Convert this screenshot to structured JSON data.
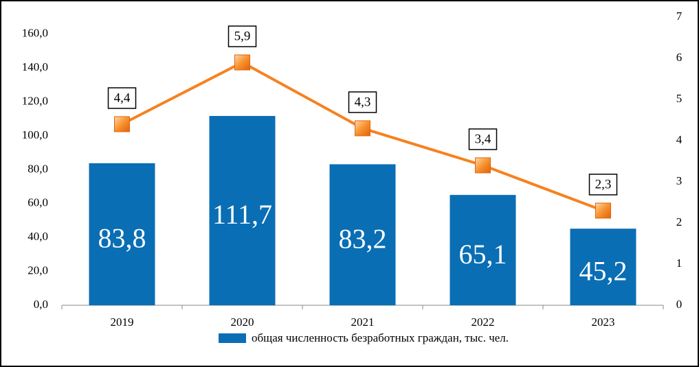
{
  "chart_data": {
    "type": "bar",
    "categories": [
      "2019",
      "2020",
      "2021",
      "2022",
      "2023"
    ],
    "series": [
      {
        "name": "общая численность безработных граждан, тыс. чел.",
        "type": "bar",
        "color": "#0a6eb4",
        "values": [
          83.8,
          111.7,
          83.2,
          65.1,
          45.2
        ],
        "value_labels": [
          "83,8",
          "111,7",
          "83,2",
          "65,1",
          "45,2"
        ]
      },
      {
        "type": "line",
        "axis": "y2",
        "color": "#f58220",
        "values": [
          4.4,
          5.9,
          4.3,
          3.4,
          2.3
        ],
        "value_labels": [
          "4,4",
          "5,9",
          "4,3",
          "3,4",
          "2,3"
        ]
      }
    ],
    "ylim": [
      0,
      170
    ],
    "yticks": [
      {
        "value": 0,
        "label": "0,0"
      },
      {
        "value": 20,
        "label": "20,0"
      },
      {
        "value": 40,
        "label": "40,0"
      },
      {
        "value": 60,
        "label": "60,0"
      },
      {
        "value": 80,
        "label": "80,0"
      },
      {
        "value": 100,
        "label": "100,0"
      },
      {
        "value": 120,
        "label": "120,0"
      },
      {
        "value": 140,
        "label": "140,0"
      },
      {
        "value": 160,
        "label": "160,0"
      }
    ],
    "y2lim": [
      0,
      7
    ],
    "y2ticks": [
      0,
      1,
      2,
      3,
      4,
      5,
      6,
      7
    ]
  }
}
